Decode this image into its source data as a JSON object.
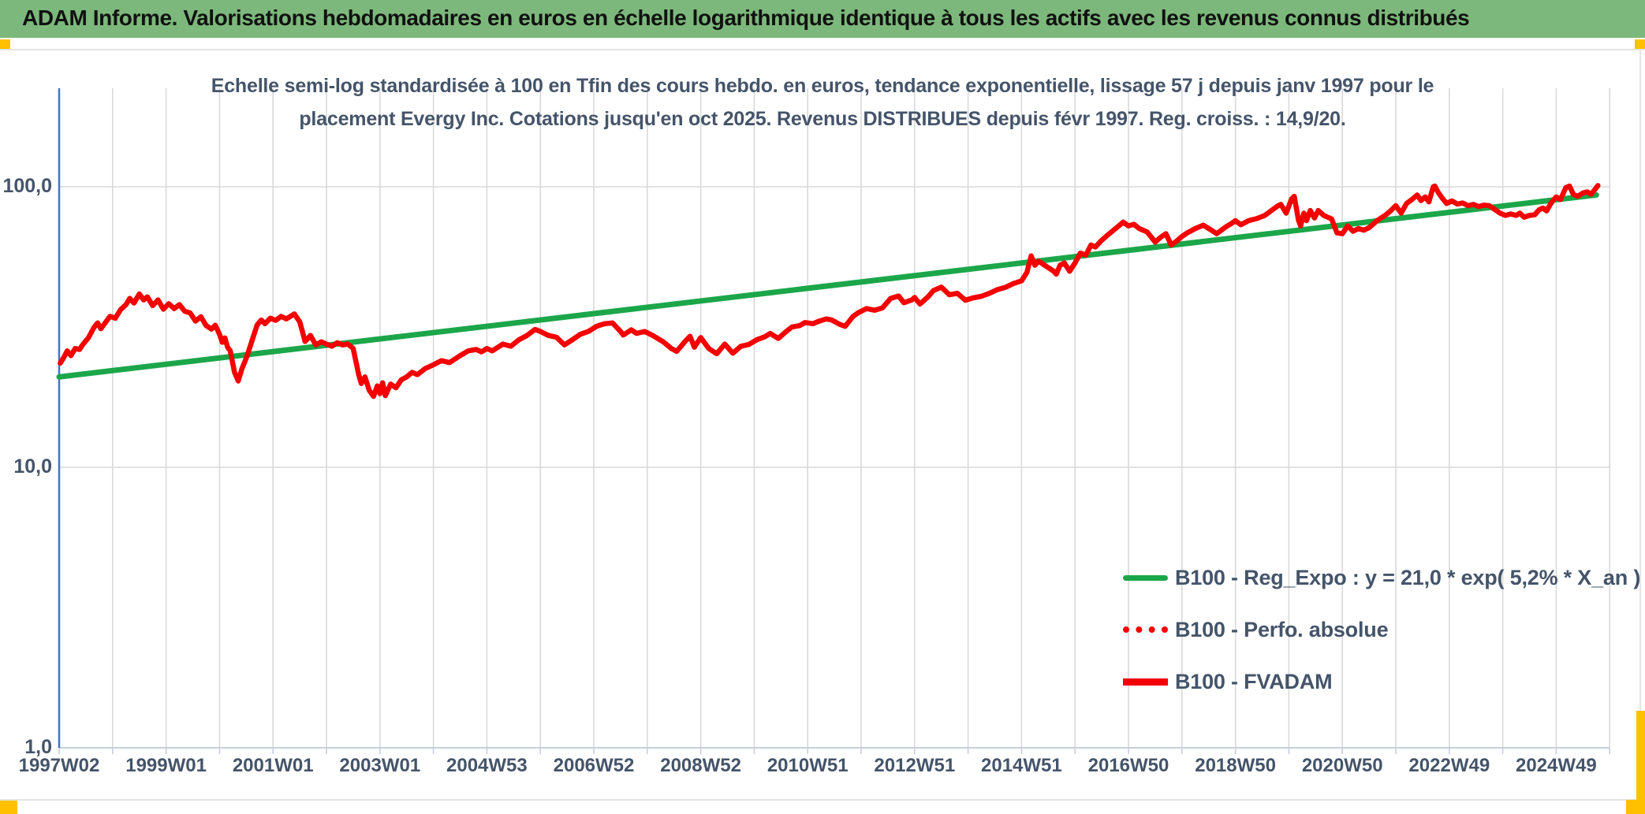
{
  "header": {
    "title": "ADAM Informe. Valorisations hebdomadaires en euros en échelle logarithmique identique à tous les actifs avec les revenus connus distribués"
  },
  "colors": {
    "header_green": "#7CB87B",
    "accent_orange": "#FFC000",
    "trend_green": "#1CA64A",
    "series_red": "#F40000",
    "text_blue_gray": "#44546A",
    "gridline": "#D9D9D9",
    "y_axis_blue": "#4472C4",
    "x_axis_gray": "#C5CEDD"
  },
  "chart_data": {
    "type": "line",
    "scale": "semi-log (log10 y-axis)",
    "subtitle_lines": [
      "Echelle semi-log standardisée à 100 en Tfin des cours hebdo. en euros, tendance exponentielle, lissage 57 j depuis janv 1997 pour le",
      "placement Evergy Inc. Cotations jusqu'en oct 2025. Revenus DISTRIBUES depuis févr 1997. Reg. croiss. : 14,9/20."
    ],
    "x_tick_labels": [
      "1997W02",
      "1999W01",
      "2001W01",
      "2003W01",
      "2004W53",
      "2006W52",
      "2008W52",
      "2010W51",
      "2012W51",
      "2014W51",
      "2016W50",
      "2018W50",
      "2020W50",
      "2022W49",
      "2024W49"
    ],
    "x_tick_years": [
      1997,
      1999,
      2001,
      2003,
      2005,
      2007,
      2009,
      2011,
      2013,
      2015,
      2017,
      2019,
      2021,
      2023,
      2025
    ],
    "y_ticks": [
      {
        "label": "100,0",
        "value": 100
      },
      {
        "label": "10,0",
        "value": 10
      },
      {
        "label": "1,0",
        "value": 1
      }
    ],
    "ylim_log": [
      1,
      224
    ],
    "x_range_years": [
      1997.0,
      2026.0
    ],
    "grid": "vertical yearly + horizontal per decade",
    "legend_position": "inside bottom-right",
    "series": [
      {
        "name": "B100 - Reg_Expo : y = 21,0 * exp( 5,2% *  X_an )",
        "style": "solid",
        "color": "#1CA64A",
        "points": [
          [
            1997.0,
            21.0
          ],
          [
            2025.75,
            93.5
          ]
        ]
      },
      {
        "name": "B100 - Perfo. absolue",
        "style": "dotted",
        "color": "#F40000",
        "points": []
      },
      {
        "name": "B100 - FVADAM",
        "style": "solid",
        "color": "#F40000",
        "points": [
          [
            1997.02,
            23.5
          ],
          [
            1997.08,
            24.5
          ],
          [
            1997.15,
            26.0
          ],
          [
            1997.22,
            25.0
          ],
          [
            1997.3,
            26.5
          ],
          [
            1997.38,
            26.3
          ],
          [
            1997.45,
            27.5
          ],
          [
            1997.55,
            29.0
          ],
          [
            1997.65,
            31.5
          ],
          [
            1997.72,
            32.7
          ],
          [
            1997.78,
            31.2
          ],
          [
            1997.85,
            32.5
          ],
          [
            1997.95,
            34.5
          ],
          [
            1998.05,
            34.0
          ],
          [
            1998.15,
            36.5
          ],
          [
            1998.25,
            38.0
          ],
          [
            1998.32,
            40.0
          ],
          [
            1998.4,
            38.5
          ],
          [
            1998.5,
            41.5
          ],
          [
            1998.58,
            39.5
          ],
          [
            1998.65,
            40.5
          ],
          [
            1998.75,
            37.7
          ],
          [
            1998.85,
            39.5
          ],
          [
            1998.95,
            36.6
          ],
          [
            1999.05,
            38.3
          ],
          [
            1999.15,
            36.8
          ],
          [
            1999.25,
            38.0
          ],
          [
            1999.35,
            36.0
          ],
          [
            1999.45,
            35.5
          ],
          [
            1999.55,
            33.2
          ],
          [
            1999.65,
            34.4
          ],
          [
            1999.75,
            32.0
          ],
          [
            1999.85,
            31.1
          ],
          [
            1999.92,
            32.1
          ],
          [
            2000.0,
            29.8
          ],
          [
            2000.05,
            27.9
          ],
          [
            2000.1,
            28.9
          ],
          [
            2000.15,
            26.8
          ],
          [
            2000.2,
            26.0
          ],
          [
            2000.28,
            21.8
          ],
          [
            2000.35,
            20.3
          ],
          [
            2000.42,
            22.5
          ],
          [
            2000.5,
            24.5
          ],
          [
            2000.6,
            28.0
          ],
          [
            2000.7,
            32.1
          ],
          [
            2000.78,
            33.5
          ],
          [
            2000.85,
            32.5
          ],
          [
            2000.95,
            34.0
          ],
          [
            2001.05,
            33.4
          ],
          [
            2001.15,
            34.5
          ],
          [
            2001.25,
            33.8
          ],
          [
            2001.4,
            35.2
          ],
          [
            2001.5,
            33.0
          ],
          [
            2001.6,
            28.1
          ],
          [
            2001.7,
            29.5
          ],
          [
            2001.8,
            27.3
          ],
          [
            2001.9,
            28.0
          ],
          [
            2002.0,
            27.5
          ],
          [
            2002.1,
            27.0
          ],
          [
            2002.2,
            27.8
          ],
          [
            2002.3,
            27.3
          ],
          [
            2002.4,
            27.5
          ],
          [
            2002.5,
            26.5
          ],
          [
            2002.6,
            21.5
          ],
          [
            2002.65,
            19.9
          ],
          [
            2002.72,
            21.0
          ],
          [
            2002.8,
            18.8
          ],
          [
            2002.88,
            17.9
          ],
          [
            2002.95,
            19.5
          ],
          [
            2003.0,
            18.3
          ],
          [
            2003.05,
            20.0
          ],
          [
            2003.1,
            18.0
          ],
          [
            2003.2,
            19.8
          ],
          [
            2003.3,
            19.2
          ],
          [
            2003.4,
            20.5
          ],
          [
            2003.5,
            21.0
          ],
          [
            2003.6,
            21.8
          ],
          [
            2003.7,
            21.4
          ],
          [
            2003.85,
            22.5
          ],
          [
            2004.0,
            23.2
          ],
          [
            2004.15,
            24.0
          ],
          [
            2004.3,
            23.6
          ],
          [
            2004.5,
            25.0
          ],
          [
            2004.65,
            26.0
          ],
          [
            2004.8,
            26.3
          ],
          [
            2004.9,
            25.8
          ],
          [
            2005.0,
            26.5
          ],
          [
            2005.1,
            26.0
          ],
          [
            2005.3,
            27.5
          ],
          [
            2005.45,
            27.0
          ],
          [
            2005.6,
            28.5
          ],
          [
            2005.75,
            29.5
          ],
          [
            2005.9,
            31.0
          ],
          [
            2006.0,
            30.5
          ],
          [
            2006.15,
            29.5
          ],
          [
            2006.3,
            29.1
          ],
          [
            2006.45,
            27.3
          ],
          [
            2006.6,
            28.5
          ],
          [
            2006.75,
            29.8
          ],
          [
            2006.9,
            30.5
          ],
          [
            2007.05,
            31.8
          ],
          [
            2007.2,
            32.5
          ],
          [
            2007.35,
            32.7
          ],
          [
            2007.5,
            30.5
          ],
          [
            2007.55,
            29.6
          ],
          [
            2007.7,
            30.9
          ],
          [
            2007.8,
            30.0
          ],
          [
            2007.95,
            30.5
          ],
          [
            2008.1,
            29.5
          ],
          [
            2008.3,
            28.0
          ],
          [
            2008.45,
            26.5
          ],
          [
            2008.55,
            25.9
          ],
          [
            2008.7,
            28.0
          ],
          [
            2008.8,
            29.3
          ],
          [
            2008.88,
            26.8
          ],
          [
            2009.0,
            29.0
          ],
          [
            2009.15,
            26.5
          ],
          [
            2009.3,
            25.4
          ],
          [
            2009.45,
            27.5
          ],
          [
            2009.6,
            25.5
          ],
          [
            2009.75,
            27.0
          ],
          [
            2009.9,
            27.4
          ],
          [
            2010.05,
            28.5
          ],
          [
            2010.2,
            29.2
          ],
          [
            2010.3,
            30.0
          ],
          [
            2010.45,
            28.8
          ],
          [
            2010.6,
            30.5
          ],
          [
            2010.7,
            31.6
          ],
          [
            2010.85,
            32.0
          ],
          [
            2010.95,
            32.8
          ],
          [
            2011.1,
            32.5
          ],
          [
            2011.2,
            33.1
          ],
          [
            2011.35,
            33.8
          ],
          [
            2011.45,
            33.5
          ],
          [
            2011.6,
            32.3
          ],
          [
            2011.7,
            31.8
          ],
          [
            2011.85,
            34.5
          ],
          [
            2011.95,
            35.6
          ],
          [
            2012.1,
            36.8
          ],
          [
            2012.25,
            36.3
          ],
          [
            2012.4,
            37.0
          ],
          [
            2012.55,
            40.0
          ],
          [
            2012.7,
            40.8
          ],
          [
            2012.8,
            38.6
          ],
          [
            2012.95,
            39.5
          ],
          [
            2013.0,
            40.3
          ],
          [
            2013.1,
            38.2
          ],
          [
            2013.25,
            40.5
          ],
          [
            2013.35,
            42.6
          ],
          [
            2013.5,
            43.9
          ],
          [
            2013.65,
            41.2
          ],
          [
            2013.8,
            41.7
          ],
          [
            2013.95,
            39.4
          ],
          [
            2014.1,
            40.2
          ],
          [
            2014.25,
            40.7
          ],
          [
            2014.4,
            41.7
          ],
          [
            2014.55,
            43.0
          ],
          [
            2014.7,
            43.8
          ],
          [
            2014.85,
            45.2
          ],
          [
            2015.0,
            46.2
          ],
          [
            2015.1,
            49.5
          ],
          [
            2015.18,
            56.7
          ],
          [
            2015.25,
            52.5
          ],
          [
            2015.32,
            54.3
          ],
          [
            2015.4,
            53.0
          ],
          [
            2015.5,
            51.5
          ],
          [
            2015.6,
            50.0
          ],
          [
            2015.65,
            48.8
          ],
          [
            2015.72,
            52.5
          ],
          [
            2015.8,
            53.5
          ],
          [
            2015.9,
            50.0
          ],
          [
            2016.0,
            53.5
          ],
          [
            2016.1,
            58.0
          ],
          [
            2016.2,
            57.0
          ],
          [
            2016.3,
            62.0
          ],
          [
            2016.38,
            61.0
          ],
          [
            2016.5,
            64.5
          ],
          [
            2016.6,
            67.0
          ],
          [
            2016.7,
            69.5
          ],
          [
            2016.8,
            72.0
          ],
          [
            2016.9,
            74.8
          ],
          [
            2017.0,
            72.5
          ],
          [
            2017.1,
            73.5
          ],
          [
            2017.2,
            71.0
          ],
          [
            2017.35,
            69.0
          ],
          [
            2017.5,
            63.5
          ],
          [
            2017.6,
            66.0
          ],
          [
            2017.7,
            68.0
          ],
          [
            2017.8,
            62.0
          ],
          [
            2017.9,
            64.0
          ],
          [
            2018.0,
            66.5
          ],
          [
            2018.1,
            68.5
          ],
          [
            2018.25,
            71.0
          ],
          [
            2018.4,
            73.0
          ],
          [
            2018.55,
            70.0
          ],
          [
            2018.65,
            68.0
          ],
          [
            2018.8,
            71.5
          ],
          [
            2018.95,
            74.5
          ],
          [
            2019.0,
            75.7
          ],
          [
            2019.1,
            73.2
          ],
          [
            2019.25,
            75.7
          ],
          [
            2019.4,
            77.0
          ],
          [
            2019.55,
            79.0
          ],
          [
            2019.7,
            83.0
          ],
          [
            2019.8,
            85.6
          ],
          [
            2019.85,
            86.5
          ],
          [
            2019.95,
            80.5
          ],
          [
            2020.05,
            90.5
          ],
          [
            2020.1,
            92.5
          ],
          [
            2020.18,
            76.0
          ],
          [
            2020.22,
            72.5
          ],
          [
            2020.28,
            80.5
          ],
          [
            2020.33,
            75.7
          ],
          [
            2020.4,
            82.3
          ],
          [
            2020.48,
            77.4
          ],
          [
            2020.55,
            82.3
          ],
          [
            2020.65,
            79.0
          ],
          [
            2020.8,
            76.8
          ],
          [
            2020.9,
            68.5
          ],
          [
            2021.0,
            68.0
          ],
          [
            2021.1,
            72.5
          ],
          [
            2021.2,
            69.4
          ],
          [
            2021.3,
            71.0
          ],
          [
            2021.4,
            70.0
          ],
          [
            2021.5,
            71.5
          ],
          [
            2021.65,
            75.7
          ],
          [
            2021.8,
            79.0
          ],
          [
            2021.9,
            82.0
          ],
          [
            2022.0,
            85.6
          ],
          [
            2022.1,
            80.5
          ],
          [
            2022.2,
            87.2
          ],
          [
            2022.3,
            90.0
          ],
          [
            2022.4,
            93.5
          ],
          [
            2022.47,
            89.3
          ],
          [
            2022.55,
            92.0
          ],
          [
            2022.62,
            88.3
          ],
          [
            2022.7,
            100.0
          ],
          [
            2022.73,
            100.6
          ],
          [
            2022.8,
            95.0
          ],
          [
            2022.87,
            91.0
          ],
          [
            2022.95,
            87.2
          ],
          [
            2023.05,
            89.0
          ],
          [
            2023.15,
            86.8
          ],
          [
            2023.25,
            87.5
          ],
          [
            2023.35,
            85.6
          ],
          [
            2023.45,
            86.5
          ],
          [
            2023.55,
            85.0
          ],
          [
            2023.65,
            86.0
          ],
          [
            2023.75,
            85.6
          ],
          [
            2023.85,
            83.0
          ],
          [
            2023.95,
            80.5
          ],
          [
            2024.05,
            79.0
          ],
          [
            2024.15,
            80.0
          ],
          [
            2024.25,
            79.0
          ],
          [
            2024.32,
            80.5
          ],
          [
            2024.4,
            77.9
          ],
          [
            2024.5,
            79.0
          ],
          [
            2024.6,
            79.5
          ],
          [
            2024.68,
            82.8
          ],
          [
            2024.75,
            84.0
          ],
          [
            2024.82,
            82.0
          ],
          [
            2024.9,
            87.3
          ],
          [
            2025.0,
            92.0
          ],
          [
            2025.08,
            90.0
          ],
          [
            2025.18,
            99.3
          ],
          [
            2025.25,
            100.6
          ],
          [
            2025.32,
            93.9
          ],
          [
            2025.4,
            92.5
          ],
          [
            2025.5,
            95.0
          ],
          [
            2025.58,
            95.9
          ],
          [
            2025.65,
            94.0
          ],
          [
            2025.72,
            97.5
          ],
          [
            2025.78,
            101.0
          ]
        ]
      }
    ]
  }
}
